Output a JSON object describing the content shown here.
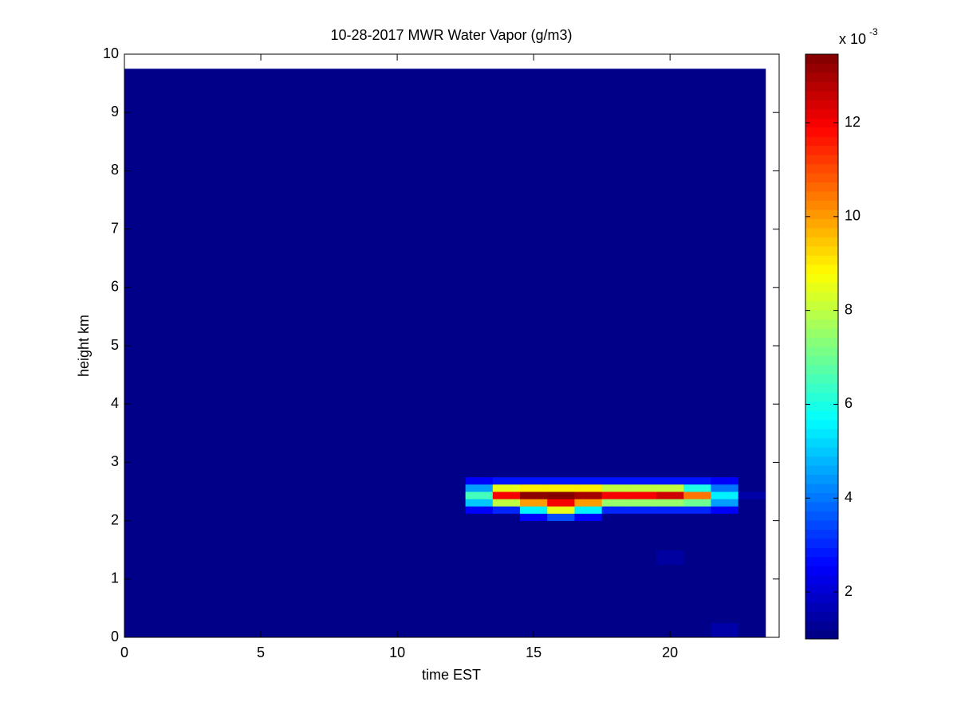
{
  "chart_data": {
    "type": "heatmap",
    "title": "10-28-2017 MWR Water Vapor (g/m3)",
    "xlabel": "time EST",
    "ylabel": "height km",
    "colormap": "jet",
    "x_edges": [
      0,
      0.5,
      1.5,
      2.5,
      3.5,
      4.5,
      5.5,
      6.5,
      7.5,
      8.5,
      9.5,
      10.5,
      11.5,
      12.5,
      13.5,
      14.5,
      15.5,
      16.5,
      17.5,
      18.5,
      19.5,
      20.5,
      21.5,
      22.5,
      23.5
    ],
    "y_edges": [
      0,
      0.25,
      1.25,
      1.5,
      2.0,
      2.125,
      2.25,
      2.375,
      2.5,
      2.625,
      2.75,
      9.75
    ],
    "values": [
      [
        1.1,
        1.1,
        1.1,
        1.1,
        1.1,
        1.1,
        1.1,
        1.1,
        1.1,
        1.1,
        1.1,
        1.1,
        1.1,
        1.1,
        1.1,
        1.1,
        1.1,
        1.1,
        1.1,
        1.1,
        1.1,
        1.1,
        1.5,
        1.1
      ],
      [
        1.1,
        1.1,
        1.1,
        1.1,
        1.1,
        1.1,
        1.1,
        1.1,
        1.1,
        1.1,
        1.1,
        1.1,
        1.1,
        1.1,
        1.1,
        1.1,
        1.1,
        1.1,
        1.1,
        1.1,
        1.1,
        1.1,
        1.1,
        1.1
      ],
      [
        1.1,
        1.1,
        1.1,
        1.1,
        1.1,
        1.1,
        1.1,
        1.1,
        1.1,
        1.1,
        1.1,
        1.1,
        1.1,
        1.1,
        1.1,
        1.1,
        1.1,
        1.1,
        1.1,
        1.1,
        1.4,
        1.1,
        1.1,
        1.1
      ],
      [
        1.1,
        1.1,
        1.1,
        1.1,
        1.1,
        1.1,
        1.1,
        1.1,
        1.1,
        1.1,
        1.1,
        1.1,
        1.1,
        1.1,
        1.1,
        1.1,
        1.1,
        1.1,
        1.1,
        1.1,
        1.1,
        1.1,
        1.1,
        1.1
      ],
      [
        1.1,
        1.1,
        1.1,
        1.1,
        1.1,
        1.1,
        1.1,
        1.1,
        1.1,
        1.1,
        1.1,
        1.1,
        1.1,
        1.1,
        1.1,
        2.5,
        3.5,
        2.5,
        1.1,
        1.1,
        1.1,
        1.1,
        1.1,
        1.1
      ],
      [
        1.1,
        1.1,
        1.1,
        1.1,
        1.1,
        1.1,
        1.1,
        1.1,
        1.1,
        1.1,
        1.1,
        1.1,
        1.1,
        2.5,
        3,
        5.5,
        8.5,
        5.5,
        3,
        3,
        3,
        3,
        2.5,
        1.1
      ],
      [
        1.1,
        1.1,
        1.1,
        1.1,
        1.1,
        1.1,
        1.1,
        1.1,
        1.1,
        1.1,
        1.1,
        1.1,
        1.1,
        5,
        8,
        10,
        12,
        10,
        7.5,
        7.5,
        7.5,
        7,
        4.5,
        1.1
      ],
      [
        1.1,
        1.1,
        1.1,
        1.1,
        1.1,
        1.1,
        1.1,
        1.1,
        1.1,
        1.1,
        1.1,
        1.1,
        1.1,
        6.5,
        12,
        13.3,
        13.4,
        13,
        12,
        12,
        12.5,
        10.5,
        5.5,
        1.5
      ],
      [
        1.1,
        1.1,
        1.1,
        1.1,
        1.1,
        1.1,
        1.1,
        1.1,
        1.1,
        1.1,
        1.1,
        1.1,
        1.1,
        4.5,
        8.5,
        9,
        9,
        9,
        8,
        8,
        8,
        6,
        4,
        1.1
      ],
      [
        1.1,
        1.1,
        1.1,
        1.1,
        1.1,
        1.1,
        1.1,
        1.1,
        1.1,
        1.1,
        1.1,
        1.1,
        1.1,
        2.5,
        2.8,
        2.8,
        2.8,
        2.8,
        2.8,
        2.8,
        2.8,
        2.8,
        2.5,
        1.1
      ],
      [
        1.1,
        1.1,
        1.1,
        1.1,
        1.1,
        1.1,
        1.1,
        1.1,
        1.1,
        1.1,
        1.1,
        1.1,
        1.1,
        1.1,
        1.1,
        1.1,
        1.1,
        1.1,
        1.1,
        1.1,
        1.1,
        1.1,
        1.1,
        1.1
      ]
    ],
    "xlim": [
      0,
      24
    ],
    "ylim": [
      0,
      10
    ],
    "xticks": [
      0,
      5,
      10,
      15,
      20
    ],
    "yticks": [
      0,
      1,
      2,
      3,
      4,
      5,
      6,
      7,
      8,
      9,
      10
    ],
    "colorbar": {
      "lim": [
        1,
        13.46
      ],
      "ticks": [
        2,
        4,
        6,
        8,
        10,
        12
      ],
      "multiplier_label": "x 10",
      "multiplier_exponent": "-3"
    }
  }
}
